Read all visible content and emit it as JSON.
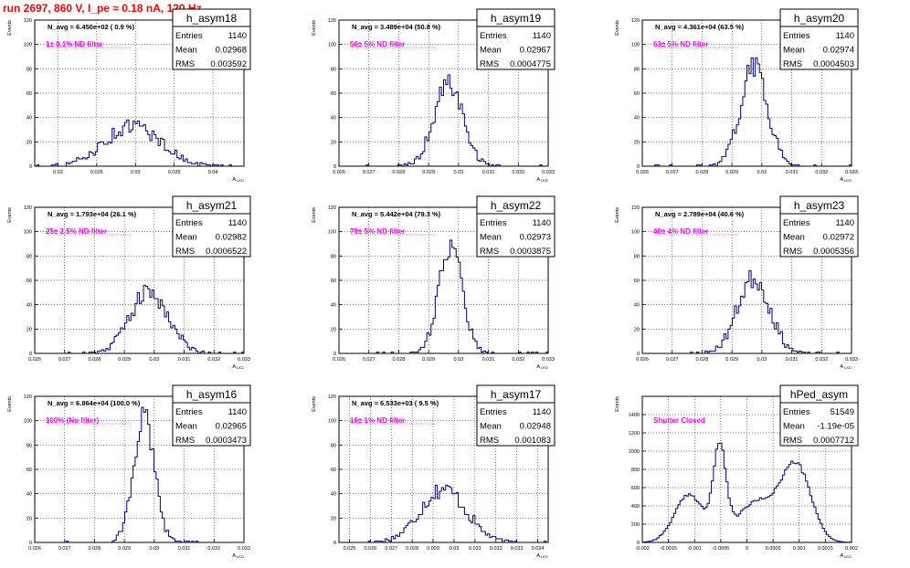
{
  "title": "run 2697,   860 V, I_pe ≈ 0.18 nA, 120 Hz",
  "axis_labels": {
    "y": "Events",
    "x": "A",
    "x_sub": "LED"
  },
  "colors": {
    "title": "#ff0000",
    "histogram": "#00007f",
    "annotation": "#ff00ff",
    "grid": "#000000",
    "frame": "#000000"
  },
  "stat_labels": {
    "entries": "Entries",
    "mean": "Mean",
    "rms": "RMS"
  },
  "chart_data": [
    {
      "type": "histogram",
      "name": "h_asym18",
      "navg": "N_avg = 6.450e+02 ( 0.9 %)",
      "filter": "1± 0.1% ND filter",
      "stats": {
        "entries": "1140",
        "mean": "0.02968",
        "rms": "0.003592"
      },
      "xlim": [
        0.017,
        0.044
      ],
      "ylim": [
        0,
        120
      ],
      "xticks": [
        0.02,
        0.025,
        0.03,
        0.035,
        0.04
      ],
      "xtick_labels": [
        "0.02",
        "0.025",
        "0.03",
        "0.035",
        "0.04"
      ],
      "yticks": [
        0,
        20,
        40,
        60,
        80,
        100,
        120
      ],
      "ytick_labels": [
        "0",
        "20",
        "40",
        "60",
        "80",
        "100",
        "120"
      ],
      "gauss": {
        "mean": 0.02968,
        "sigma": 0.003592,
        "amp": 33,
        "entries": 1140,
        "nbins": 100,
        "xmin": 0.017,
        "xmax": 0.044,
        "seed": 18
      }
    },
    {
      "type": "histogram",
      "name": "h_asym19",
      "navg": "N_avg = 3.489e+04 (50.8 %)",
      "filter": "50± 5% ND filter",
      "stats": {
        "entries": "1140",
        "mean": "0.02967",
        "rms": "0.0004775"
      },
      "xlim": [
        0.026,
        0.033
      ],
      "ylim": [
        0,
        120
      ],
      "xticks": [
        0.026,
        0.027,
        0.028,
        0.029,
        0.03,
        0.031,
        0.032,
        0.033
      ],
      "xtick_labels": [
        "0.026",
        "0.027",
        "0.028",
        "0.029",
        "0.03",
        "0.031",
        "0.032",
        "0.033"
      ],
      "yticks": [
        0,
        20,
        40,
        60,
        80,
        100,
        120
      ],
      "ytick_labels": [
        "0",
        "20",
        "40",
        "60",
        "80",
        "100",
        "120"
      ],
      "gauss": {
        "mean": 0.02967,
        "sigma": 0.0004775,
        "amp": 68,
        "entries": 1140,
        "nbins": 100,
        "xmin": 0.026,
        "xmax": 0.033,
        "seed": 19
      }
    },
    {
      "type": "histogram",
      "name": "h_asym20",
      "navg": "N_avg = 4.361e+04 (63.5 %)",
      "filter": "63± 5% ND filter",
      "stats": {
        "entries": "1140",
        "mean": "0.02974",
        "rms": "0.0004503"
      },
      "xlim": [
        0.026,
        0.033
      ],
      "ylim": [
        0,
        120
      ],
      "xticks": [
        0.026,
        0.027,
        0.028,
        0.029,
        0.03,
        0.031,
        0.032,
        0.033
      ],
      "xtick_labels": [
        "0.026",
        "0.027",
        "0.028",
        "0.029",
        "0.03",
        "0.031",
        "0.032",
        "0.033"
      ],
      "yticks": [
        0,
        20,
        40,
        60,
        80,
        100,
        120
      ],
      "ytick_labels": [
        "0",
        "20",
        "40",
        "60",
        "80",
        "100",
        "120"
      ],
      "gauss": {
        "mean": 0.02974,
        "sigma": 0.0004503,
        "amp": 82,
        "entries": 1140,
        "nbins": 100,
        "xmin": 0.026,
        "xmax": 0.033,
        "seed": 20
      }
    },
    {
      "type": "histogram",
      "name": "h_asym21",
      "navg": "N_avg = 1.793e+04 (26.1 %)",
      "filter": "25± 2.5% ND filter",
      "stats": {
        "entries": "1140",
        "mean": "0.02982",
        "rms": "0.0006522"
      },
      "xlim": [
        0.026,
        0.033
      ],
      "ylim": [
        0,
        120
      ],
      "xticks": [
        0.026,
        0.027,
        0.028,
        0.029,
        0.03,
        0.031,
        0.032,
        0.033
      ],
      "xtick_labels": [
        "0.026",
        "0.027",
        "0.028",
        "0.029",
        "0.03",
        "0.031",
        "0.032",
        "0.033"
      ],
      "yticks": [
        0,
        20,
        40,
        60,
        80,
        100,
        120
      ],
      "ytick_labels": [
        "0",
        "20",
        "40",
        "60",
        "80",
        "100",
        "120"
      ],
      "gauss": {
        "mean": 0.02982,
        "sigma": 0.0006522,
        "amp": 50,
        "entries": 1140,
        "nbins": 100,
        "xmin": 0.026,
        "xmax": 0.033,
        "seed": 21
      }
    },
    {
      "type": "histogram",
      "name": "h_asym22",
      "navg": "N_avg = 5.442e+04 (79.3 %)",
      "filter": "79± 5% ND filter",
      "stats": {
        "entries": "1140",
        "mean": "0.02973",
        "rms": "0.0003875"
      },
      "xlim": [
        0.026,
        0.033
      ],
      "ylim": [
        0,
        120
      ],
      "xticks": [
        0.026,
        0.027,
        0.028,
        0.029,
        0.03,
        0.031,
        0.032,
        0.033
      ],
      "xtick_labels": [
        "0.026",
        "0.027",
        "0.028",
        "0.029",
        "0.03",
        "0.031",
        "0.032",
        "0.033"
      ],
      "yticks": [
        0,
        20,
        40,
        60,
        80,
        100,
        120
      ],
      "ytick_labels": [
        "0",
        "20",
        "40",
        "60",
        "80",
        "100",
        "120"
      ],
      "gauss": {
        "mean": 0.02973,
        "sigma": 0.0003875,
        "amp": 90,
        "entries": 1140,
        "nbins": 100,
        "xmin": 0.026,
        "xmax": 0.033,
        "seed": 22
      }
    },
    {
      "type": "histogram",
      "name": "h_asym23",
      "navg": "N_avg = 2.789e+04 (40.6 %)",
      "filter": "40± 4% ND filter",
      "stats": {
        "entries": "1140",
        "mean": "0.02972",
        "rms": "0.0005356"
      },
      "xlim": [
        0.026,
        0.033
      ],
      "ylim": [
        0,
        120
      ],
      "xticks": [
        0.026,
        0.027,
        0.028,
        0.029,
        0.03,
        0.031,
        0.032,
        0.033
      ],
      "xtick_labels": [
        "0.026",
        "0.027",
        "0.028",
        "0.029",
        "0.03",
        "0.031",
        "0.032",
        "0.033"
      ],
      "yticks": [
        0,
        20,
        40,
        60,
        80,
        100,
        120
      ],
      "ytick_labels": [
        "0",
        "20",
        "40",
        "60",
        "80",
        "100",
        "120"
      ],
      "gauss": {
        "mean": 0.02972,
        "sigma": 0.0005356,
        "amp": 62,
        "entries": 1140,
        "nbins": 100,
        "xmin": 0.026,
        "xmax": 0.033,
        "seed": 23
      }
    },
    {
      "type": "histogram",
      "name": "h_asym16",
      "navg": "N_avg = 6.864e+04 (100.0 %)",
      "filter": "100% (No filter)",
      "stats": {
        "entries": "1140",
        "mean": "0.02965",
        "rms": "0.0003473"
      },
      "xlim": [
        0.026,
        0.033
      ],
      "ylim": [
        0,
        120
      ],
      "xticks": [
        0.026,
        0.027,
        0.028,
        0.029,
        0.03,
        0.031,
        0.032,
        0.033
      ],
      "xtick_labels": [
        "0.026",
        "0.027",
        "0.028",
        "0.029",
        "0.03",
        "0.031",
        "0.032",
        "0.033"
      ],
      "yticks": [
        0,
        20,
        40,
        60,
        80,
        100,
        120
      ],
      "ytick_labels": [
        "0",
        "20",
        "40",
        "60",
        "80",
        "100",
        "120"
      ],
      "gauss": {
        "mean": 0.02965,
        "sigma": 0.0003473,
        "amp": 103,
        "entries": 1140,
        "nbins": 100,
        "xmin": 0.026,
        "xmax": 0.033,
        "seed": 16
      }
    },
    {
      "type": "histogram",
      "name": "h_asym17",
      "navg": "N_avg = 6.533e+03 ( 9.5 %)",
      "filter": "10± 1% ND filter",
      "stats": {
        "entries": "1140",
        "mean": "0.02948",
        "rms": "0.001083"
      },
      "xlim": [
        0.0245,
        0.0345
      ],
      "ylim": [
        0,
        120
      ],
      "xticks": [
        0.025,
        0.026,
        0.027,
        0.028,
        0.029,
        0.03,
        0.031,
        0.032,
        0.033,
        0.034
      ],
      "xtick_labels": [
        "0.025",
        "0.026",
        "0.027",
        "0.028",
        "0.029",
        "0.03",
        "0.031",
        "0.032",
        "0.033",
        "0.034"
      ],
      "yticks": [
        0,
        20,
        40,
        60,
        80,
        100,
        120
      ],
      "ytick_labels": [
        "0",
        "20",
        "40",
        "60",
        "80",
        "100",
        "120"
      ],
      "gauss": {
        "mean": 0.02948,
        "sigma": 0.001083,
        "amp": 44,
        "entries": 1140,
        "nbins": 100,
        "xmin": 0.0245,
        "xmax": 0.0345,
        "seed": 17
      }
    },
    {
      "type": "histogram",
      "name": "hPed_asym",
      "navg": "",
      "filter": "Shutter Closed",
      "stats": {
        "entries": "51549",
        "mean": "-1.19e-05",
        "rms": "0.0007712"
      },
      "xlim": [
        -0.002,
        0.002
      ],
      "ylim": [
        0,
        1600
      ],
      "xticks": [
        -0.002,
        -0.0015,
        -0.001,
        -0.0005,
        0,
        0.0005,
        0.001,
        0.0015,
        0.002
      ],
      "xtick_labels": [
        "-0.002",
        "-0.0015",
        "-0.001",
        "-0.0005",
        "0",
        "0.0005",
        "0.001",
        "0.0015",
        "0.002"
      ],
      "yticks": [
        0,
        200,
        400,
        600,
        800,
        1000,
        1200,
        1400
      ],
      "ytick_labels": [
        "0",
        "200",
        "400",
        "600",
        "800",
        "1000",
        "1200",
        "1400"
      ],
      "shape": {
        "xmin": -0.002,
        "xmax": 0.002,
        "nbins": 100,
        "seed": 99,
        "peaks": [
          {
            "mean": -0.00052,
            "sigma": 0.00012,
            "amp": 950
          },
          {
            "mean": -0.0011,
            "sigma": 0.00028,
            "amp": 520
          },
          {
            "mean": 0.00095,
            "sigma": 0.00028,
            "amp": 800
          },
          {
            "mean": 0.0002,
            "sigma": 0.0004,
            "amp": 440
          }
        ]
      }
    }
  ]
}
